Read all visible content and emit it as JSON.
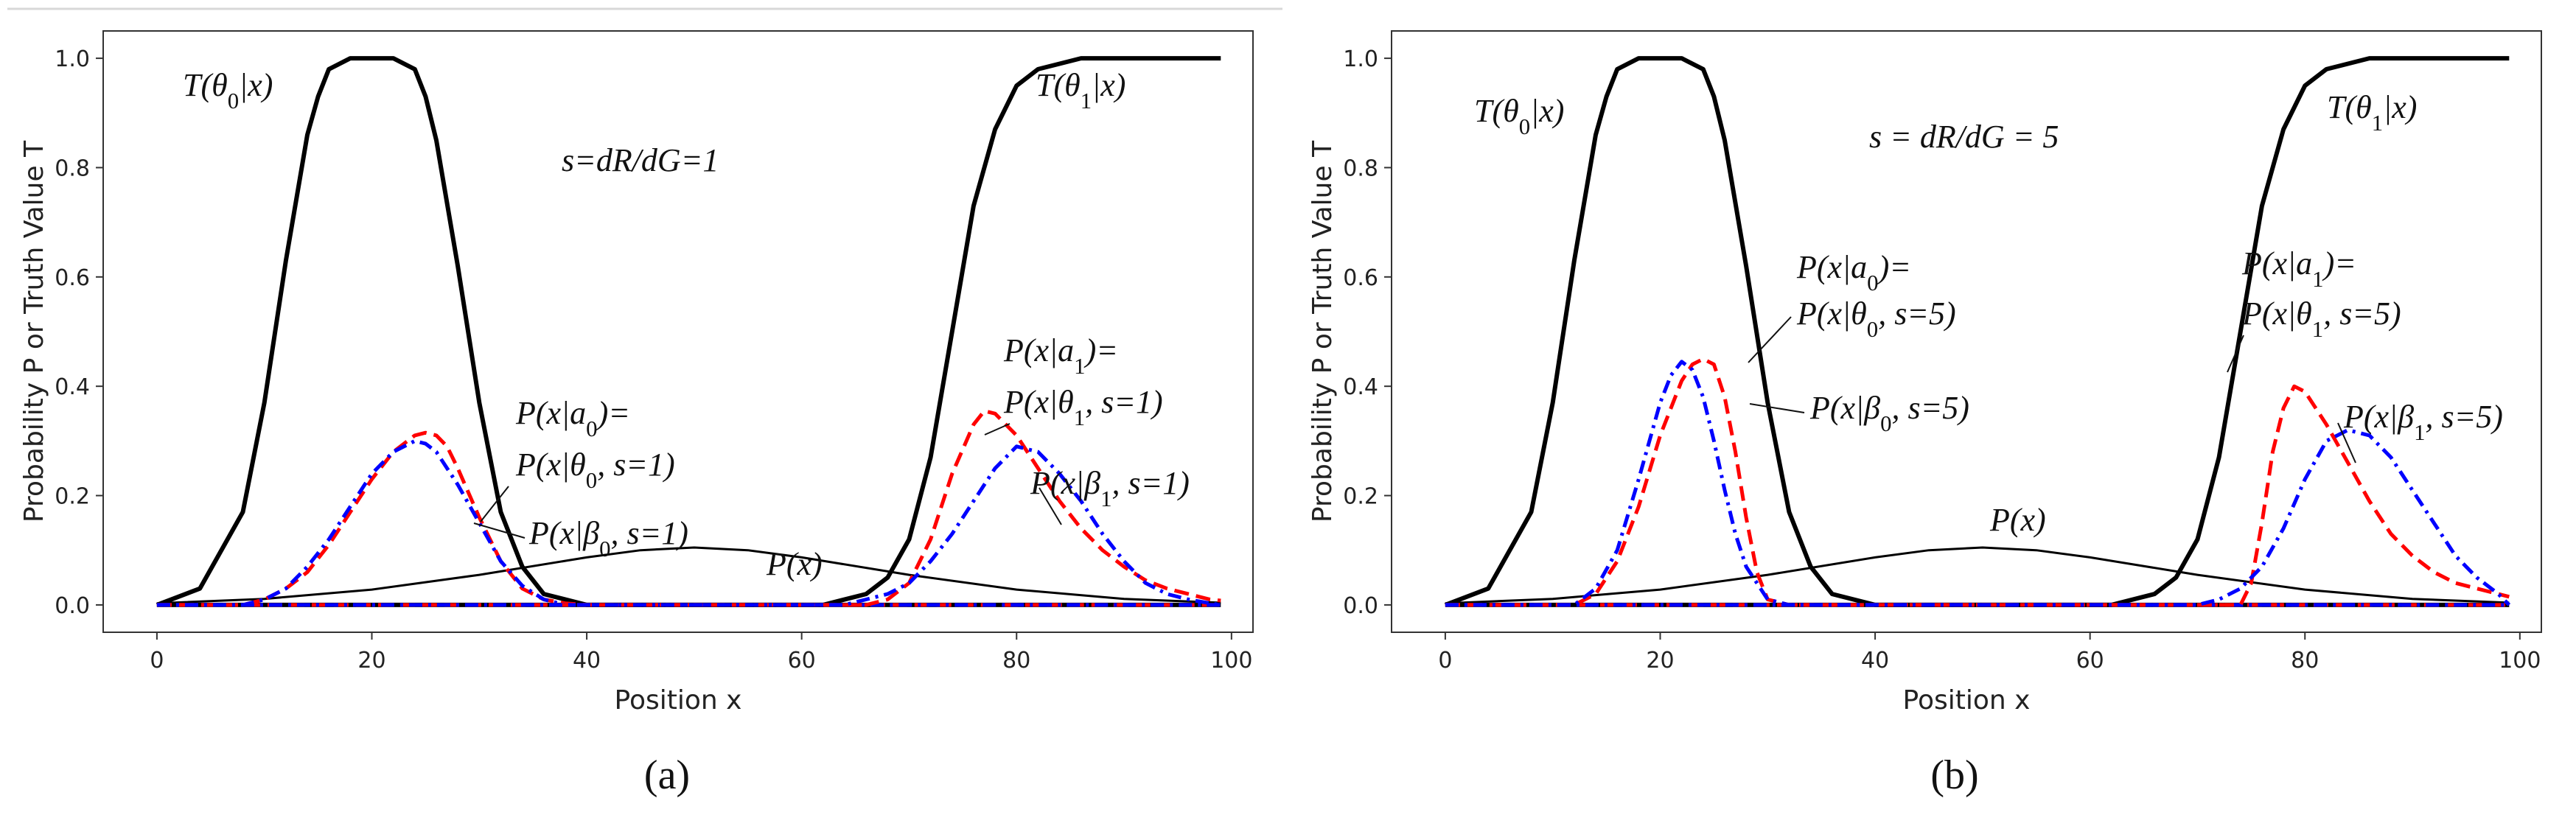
{
  "chart_data": [
    {
      "type": "line",
      "panel_label": "(a)",
      "xlabel": "Position x",
      "ylabel": "Probability P or Truth Value T",
      "xlim": [
        -5,
        102
      ],
      "ylim": [
        -0.05,
        1.05
      ],
      "xticks": [
        0,
        20,
        40,
        60,
        80,
        100
      ],
      "yticks": [
        0.0,
        0.2,
        0.4,
        0.6,
        0.8,
        1.0
      ],
      "xtick_labels": [
        "0",
        "20",
        "40",
        "60",
        "80",
        "100"
      ],
      "ytick_labels": [
        "0.0",
        "0.2",
        "0.4",
        "0.6",
        "0.8",
        "1.0"
      ],
      "grid": false,
      "series": [
        {
          "name": "T(θ0|x)",
          "style": "solid",
          "color": "#000000",
          "width": "thick",
          "x": [
            0,
            4,
            8,
            10,
            12,
            14,
            15,
            16,
            18,
            20,
            22,
            24,
            25,
            26,
            28,
            30,
            32,
            34,
            36,
            40,
            50,
            99
          ],
          "values": [
            0.0,
            0.03,
            0.17,
            0.37,
            0.63,
            0.86,
            0.93,
            0.98,
            1.0,
            1.0,
            1.0,
            0.98,
            0.93,
            0.85,
            0.62,
            0.37,
            0.17,
            0.07,
            0.02,
            0.0,
            0.0,
            0.0
          ]
        },
        {
          "name": "T(θ1|x)",
          "style": "solid",
          "color": "#000000",
          "width": "thick",
          "x": [
            0,
            62,
            66,
            68,
            70,
            72,
            74,
            76,
            78,
            80,
            82,
            84,
            86,
            90,
            99
          ],
          "values": [
            0.0,
            0.0,
            0.02,
            0.05,
            0.12,
            0.27,
            0.5,
            0.73,
            0.87,
            0.95,
            0.98,
            0.99,
            1.0,
            1.0,
            1.0
          ]
        },
        {
          "name": "P(x)",
          "style": "solid",
          "color": "#000000",
          "width": "thin",
          "x": [
            0,
            10,
            20,
            30,
            40,
            45,
            50,
            55,
            60,
            70,
            80,
            90,
            99
          ],
          "values": [
            0.003,
            0.011,
            0.028,
            0.055,
            0.087,
            0.1,
            0.105,
            0.1,
            0.087,
            0.055,
            0.028,
            0.011,
            0.004
          ]
        },
        {
          "name": "P(x|a0)=P(x|θ0, s=1)",
          "style": "dashed",
          "color": "#ff0000",
          "width": "medium",
          "x": [
            0,
            8,
            10,
            12,
            14,
            16,
            18,
            20,
            22,
            24,
            25,
            26,
            27,
            28,
            30,
            32,
            34,
            36,
            38,
            40,
            99
          ],
          "values": [
            0.0,
            0.0,
            0.01,
            0.03,
            0.06,
            0.11,
            0.17,
            0.23,
            0.28,
            0.31,
            0.315,
            0.31,
            0.29,
            0.25,
            0.16,
            0.08,
            0.03,
            0.01,
            0.003,
            0.0,
            0.0
          ]
        },
        {
          "name": "P(x|β0, s=1)",
          "style": "dashdot",
          "color": "#0000ff",
          "width": "medium",
          "x": [
            0,
            8,
            10,
            12,
            14,
            16,
            18,
            20,
            22,
            24,
            25,
            26,
            28,
            30,
            32,
            34,
            36,
            38,
            99
          ],
          "values": [
            0.0,
            0.0,
            0.01,
            0.03,
            0.07,
            0.12,
            0.18,
            0.24,
            0.28,
            0.3,
            0.295,
            0.28,
            0.22,
            0.15,
            0.08,
            0.035,
            0.01,
            0.0,
            0.0
          ]
        },
        {
          "name": "P(x|a1)=P(x|θ1, s=1)",
          "style": "dashed",
          "color": "#ff0000",
          "width": "medium",
          "x": [
            0,
            66,
            68,
            70,
            72,
            74,
            76,
            77,
            78,
            80,
            82,
            84,
            86,
            88,
            90,
            92,
            94,
            96,
            98,
            99
          ],
          "values": [
            0.0,
            0.0,
            0.01,
            0.04,
            0.12,
            0.24,
            0.33,
            0.355,
            0.35,
            0.31,
            0.25,
            0.19,
            0.14,
            0.1,
            0.07,
            0.045,
            0.03,
            0.02,
            0.01,
            0.008
          ]
        },
        {
          "name": "P(x|β1, s=1)",
          "style": "dashdot",
          "color": "#0000ff",
          "width": "medium",
          "x": [
            0,
            64,
            66,
            68,
            70,
            72,
            74,
            76,
            78,
            80,
            82,
            84,
            86,
            88,
            90,
            92,
            94,
            96,
            98,
            99
          ],
          "values": [
            0.0,
            0.0,
            0.01,
            0.02,
            0.04,
            0.08,
            0.13,
            0.19,
            0.25,
            0.29,
            0.28,
            0.24,
            0.19,
            0.13,
            0.08,
            0.04,
            0.02,
            0.01,
            0.003,
            0.0
          ]
        }
      ],
      "annotations": {
        "t0": "T(θ0|x)",
        "t1": "T(θ1|x)",
        "s_eq": "s=dR/dG=1",
        "pa0_l1": "P(x|a0)=",
        "pa0_l2": "P(x|θ0, s=1)",
        "pb0": "P(x|β0, s=1)",
        "pa1_l1": "P(x|a1)=",
        "pa1_l2": "P(x|θ1, s=1)",
        "pb1": "P(x|β1, s=1)",
        "px": "P(x)"
      }
    },
    {
      "type": "line",
      "panel_label": "(b)",
      "xlabel": "Position x",
      "ylabel": "Probability P or Truth Value T",
      "xlim": [
        -5,
        102
      ],
      "ylim": [
        -0.05,
        1.05
      ],
      "xticks": [
        0,
        20,
        40,
        60,
        80,
        100
      ],
      "yticks": [
        0.0,
        0.2,
        0.4,
        0.6,
        0.8,
        1.0
      ],
      "xtick_labels": [
        "0",
        "20",
        "40",
        "60",
        "80",
        "100"
      ],
      "ytick_labels": [
        "0.0",
        "0.2",
        "0.4",
        "0.6",
        "0.8",
        "1.0"
      ],
      "grid": false,
      "series": [
        {
          "name": "T(θ0|x)",
          "style": "solid",
          "color": "#000000",
          "width": "thick",
          "x": [
            0,
            4,
            8,
            10,
            12,
            14,
            15,
            16,
            18,
            20,
            22,
            24,
            25,
            26,
            28,
            30,
            32,
            34,
            36,
            40,
            50,
            99
          ],
          "values": [
            0.0,
            0.03,
            0.17,
            0.37,
            0.63,
            0.86,
            0.93,
            0.98,
            1.0,
            1.0,
            1.0,
            0.98,
            0.93,
            0.85,
            0.62,
            0.37,
            0.17,
            0.07,
            0.02,
            0.0,
            0.0,
            0.0
          ]
        },
        {
          "name": "T(θ1|x)",
          "style": "solid",
          "color": "#000000",
          "width": "thick",
          "x": [
            0,
            62,
            66,
            68,
            70,
            72,
            74,
            76,
            78,
            80,
            82,
            84,
            86,
            90,
            99
          ],
          "values": [
            0.0,
            0.0,
            0.02,
            0.05,
            0.12,
            0.27,
            0.5,
            0.73,
            0.87,
            0.95,
            0.98,
            0.99,
            1.0,
            1.0,
            1.0
          ]
        },
        {
          "name": "P(x)",
          "style": "solid",
          "color": "#000000",
          "width": "thin",
          "x": [
            0,
            10,
            20,
            30,
            40,
            45,
            50,
            55,
            60,
            70,
            80,
            90,
            99
          ],
          "values": [
            0.003,
            0.011,
            0.028,
            0.055,
            0.087,
            0.1,
            0.105,
            0.1,
            0.087,
            0.055,
            0.028,
            0.011,
            0.004
          ]
        },
        {
          "name": "P(x|a0)=P(x|θ0, s=5)",
          "style": "dashed",
          "color": "#ff0000",
          "width": "medium",
          "x": [
            0,
            12,
            14,
            16,
            18,
            20,
            22,
            23,
            24,
            25,
            26,
            27,
            28,
            29,
            30,
            32,
            99
          ],
          "values": [
            0.0,
            0.0,
            0.02,
            0.08,
            0.18,
            0.31,
            0.41,
            0.44,
            0.45,
            0.44,
            0.38,
            0.28,
            0.16,
            0.06,
            0.01,
            0.0,
            0.0
          ]
        },
        {
          "name": "P(x|β0, s=5)",
          "style": "dashdot",
          "color": "#0000ff",
          "width": "medium",
          "x": [
            0,
            12,
            14,
            16,
            18,
            20,
            21,
            22,
            23,
            24,
            25,
            26,
            27,
            28,
            30,
            32,
            99
          ],
          "values": [
            0.0,
            0.0,
            0.03,
            0.1,
            0.23,
            0.37,
            0.42,
            0.445,
            0.43,
            0.38,
            0.3,
            0.21,
            0.13,
            0.07,
            0.01,
            0.0,
            0.0
          ]
        },
        {
          "name": "P(x|a1)=P(x|θ1, s=5)",
          "style": "dashed",
          "color": "#ff0000",
          "width": "medium",
          "x": [
            0,
            74,
            75,
            76,
            77,
            78,
            79,
            80,
            82,
            84,
            86,
            88,
            90,
            92,
            94,
            96,
            98,
            99
          ],
          "values": [
            0.0,
            0.0,
            0.04,
            0.15,
            0.28,
            0.36,
            0.4,
            0.39,
            0.33,
            0.26,
            0.19,
            0.13,
            0.09,
            0.06,
            0.04,
            0.03,
            0.02,
            0.015
          ]
        },
        {
          "name": "P(x|β1, s=5)",
          "style": "dashdot",
          "color": "#0000ff",
          "width": "medium",
          "x": [
            0,
            70,
            72,
            74,
            76,
            78,
            80,
            82,
            84,
            86,
            88,
            90,
            92,
            94,
            96,
            98,
            99
          ],
          "values": [
            0.0,
            0.0,
            0.01,
            0.03,
            0.07,
            0.14,
            0.23,
            0.3,
            0.32,
            0.31,
            0.27,
            0.21,
            0.15,
            0.09,
            0.05,
            0.02,
            0.0
          ]
        }
      ],
      "annotations": {
        "t0": "T(θ0|x)",
        "t1": "T(θ1|x)",
        "s_eq": "s = dR/dG = 5",
        "pa0_l1": "P(x|a0)=",
        "pa0_l2": "P(x|θ0, s=5)",
        "pb0": "P(x|β0, s=5)",
        "pa1_l1": "P(x|a1)=",
        "pa1_l2": "P(x|θ1, s=5)",
        "pb1": "P(x|β1, s=5)",
        "px": "P(x)"
      }
    }
  ]
}
